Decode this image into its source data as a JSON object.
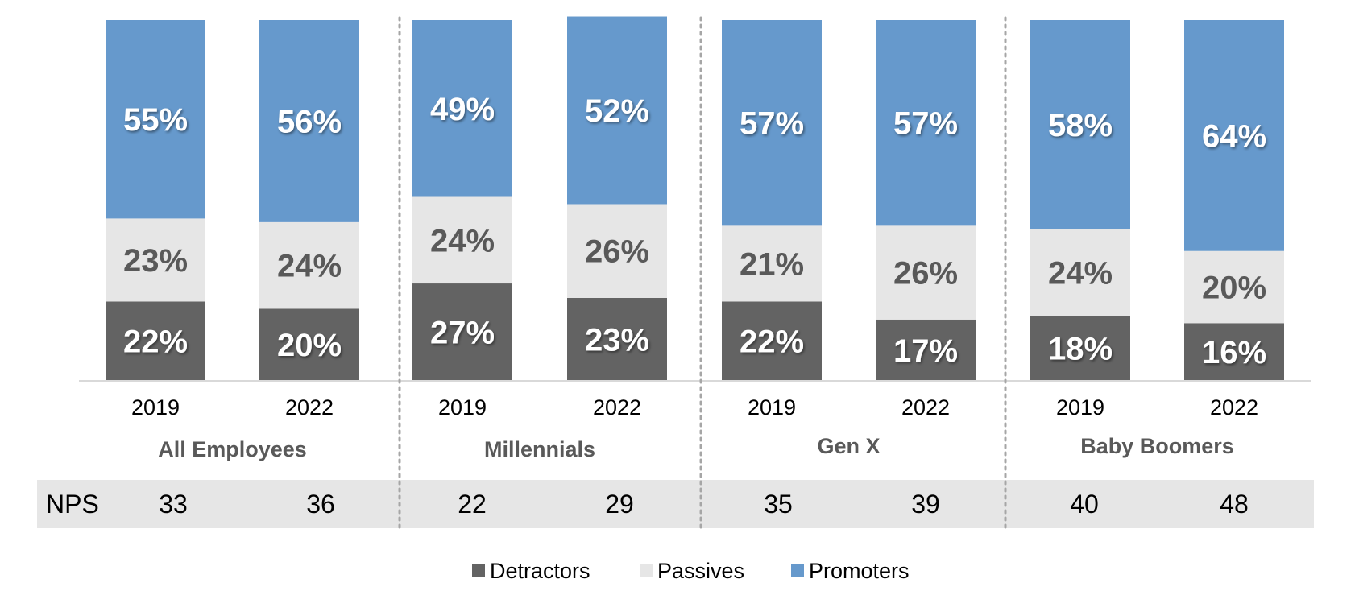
{
  "chart_data": {
    "type": "bar",
    "stacked": true,
    "percent": true,
    "groups": [
      {
        "name": "All Employees",
        "categories": [
          "2019",
          "2022"
        ]
      },
      {
        "name": "Millennials",
        "categories": [
          "2019",
          "2022"
        ]
      },
      {
        "name": "Gen X",
        "categories": [
          "2019",
          "2022"
        ]
      },
      {
        "name": "Baby Boomers",
        "categories": [
          "2019",
          "2022"
        ]
      }
    ],
    "categories": [
      "2019",
      "2022",
      "2019",
      "2022",
      "2019",
      "2022",
      "2019",
      "2022"
    ],
    "series": [
      {
        "name": "Detractors",
        "color": "#636363",
        "label_color": "#ffffff",
        "values": [
          22,
          20,
          27,
          23,
          22,
          17,
          18,
          16
        ],
        "labels": [
          "22%",
          "20%",
          "27%",
          "23%",
          "22%",
          "17%",
          "18%",
          "16%"
        ]
      },
      {
        "name": "Passives",
        "color": "#e6e6e6",
        "label_color": "#595959",
        "values": [
          23,
          24,
          24,
          26,
          21,
          26,
          24,
          20
        ],
        "labels": [
          "23%",
          "24%",
          "24%",
          "26%",
          "21%",
          "26%",
          "24%",
          "20%"
        ]
      },
      {
        "name": "Promoters",
        "color": "#6699cc",
        "label_color": "#ffffff",
        "values": [
          55,
          56,
          49,
          52,
          57,
          57,
          58,
          64
        ],
        "labels": [
          "55%",
          "56%",
          "49%",
          "52%",
          "57%",
          "57%",
          "58%",
          "64%"
        ]
      }
    ],
    "ylim": [
      0,
      100
    ],
    "nps": {
      "label": "NPS",
      "values": [
        "33",
        "36",
        "22",
        "29",
        "35",
        "39",
        "40",
        "48"
      ]
    },
    "legend": {
      "position": "bottom-center",
      "entries": [
        "Detractors",
        "Passives",
        "Promoters"
      ]
    },
    "grid": false,
    "title": "",
    "xlabel": "",
    "ylabel": ""
  }
}
